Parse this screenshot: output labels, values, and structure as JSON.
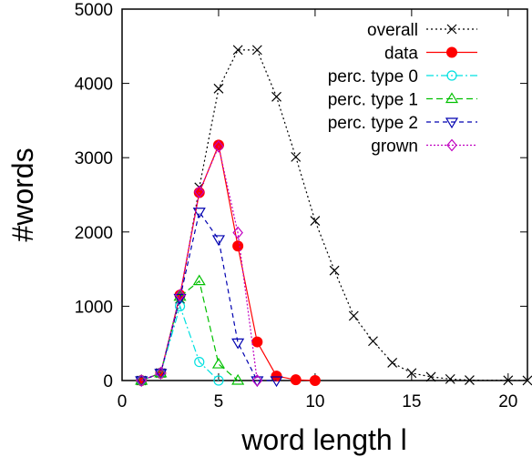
{
  "chart_data": {
    "type": "line",
    "title": "",
    "xlabel": "word length l",
    "ylabel": "#words",
    "xlim": [
      0,
      21
    ],
    "ylim": [
      0,
      5000
    ],
    "xticks": [
      0,
      5,
      10,
      15,
      20
    ],
    "yticks": [
      0,
      1000,
      2000,
      3000,
      4000,
      5000
    ],
    "grid": false,
    "legend_position": "top-right",
    "series": [
      {
        "name": "overall",
        "color": "#000000",
        "dash": "dotted",
        "marker": "x",
        "x": [
          1,
          2,
          3,
          4,
          5,
          6,
          7,
          8,
          9,
          10,
          11,
          12,
          13,
          14,
          15,
          16,
          17,
          18,
          20,
          21
        ],
        "y": [
          0,
          100,
          1100,
          2600,
          3930,
          4450,
          4450,
          3820,
          3010,
          2150,
          1480,
          870,
          530,
          240,
          100,
          50,
          20,
          5,
          2,
          1
        ]
      },
      {
        "name": "data",
        "color": "#ff0000",
        "dash": "solid",
        "marker": "filled-circle",
        "x": [
          1,
          2,
          3,
          4,
          5,
          6,
          7,
          8,
          9,
          10
        ],
        "y": [
          0,
          100,
          1150,
          2530,
          3170,
          1810,
          520,
          60,
          10,
          0
        ]
      },
      {
        "name": "perc. type 0",
        "color": "#00e0e0",
        "dash": "dashdot",
        "marker": "open-circle",
        "x": [
          1,
          2,
          3,
          4,
          5
        ],
        "y": [
          0,
          100,
          1000,
          250,
          0
        ]
      },
      {
        "name": "perc. type 1",
        "color": "#00c000",
        "dash": "dashed",
        "marker": "triangle-up",
        "x": [
          1,
          2,
          3,
          4,
          5,
          6
        ],
        "y": [
          0,
          100,
          1130,
          1340,
          220,
          0
        ]
      },
      {
        "name": "perc. type 2",
        "color": "#0000b0",
        "dash": "dashed-fine",
        "marker": "triangle-down",
        "x": [
          1,
          2,
          3,
          4,
          5,
          6,
          7,
          8
        ],
        "y": [
          0,
          100,
          1110,
          2270,
          1900,
          510,
          0,
          0
        ]
      },
      {
        "name": "grown",
        "color": "#c000c0",
        "dash": "dotted-fine",
        "marker": "open-diamond",
        "x": [
          1,
          2,
          3,
          4,
          5,
          6,
          7
        ],
        "y": [
          0,
          100,
          1150,
          2540,
          3150,
          1990,
          0
        ]
      }
    ]
  }
}
